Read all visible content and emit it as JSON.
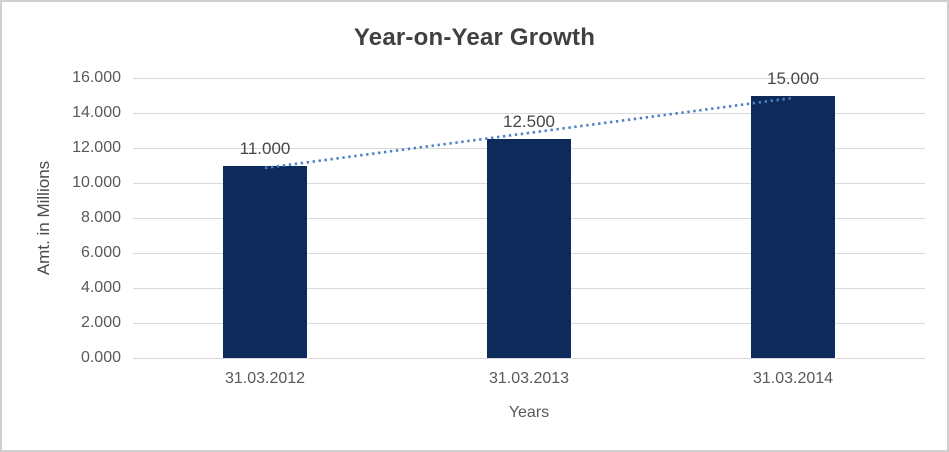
{
  "chart": {
    "colors": {
      "bar": "#0e2a5a",
      "trendline": "#4e80c4",
      "gridline": "#d9d9d9",
      "title_text": "#404040",
      "tick_text": "#595959",
      "frame_border": "#cfcfcf",
      "background": "#ffffff"
    }
  },
  "chart_data": {
    "type": "bar",
    "title": "Year-on-Year Growth",
    "xlabel": "Years",
    "ylabel": "Amt. in Millions",
    "categories": [
      "31.03.2012",
      "31.03.2013",
      "31.03.2014"
    ],
    "values": [
      11.0,
      12.5,
      15.0
    ],
    "value_labels": [
      "11.000",
      "12.500",
      "15.000"
    ],
    "ylim": [
      0,
      16
    ],
    "y_ticks": [
      0,
      2,
      4,
      6,
      8,
      10,
      12,
      14,
      16
    ],
    "y_tick_labels": [
      "0.000",
      "2.000",
      "4.000",
      "6.000",
      "8.000",
      "10.000",
      "12.000",
      "14.000",
      "16.000"
    ],
    "grid": true,
    "legend": false,
    "trendline": {
      "style": "dotted",
      "start_value": 10.86,
      "end_value": 14.86
    }
  }
}
